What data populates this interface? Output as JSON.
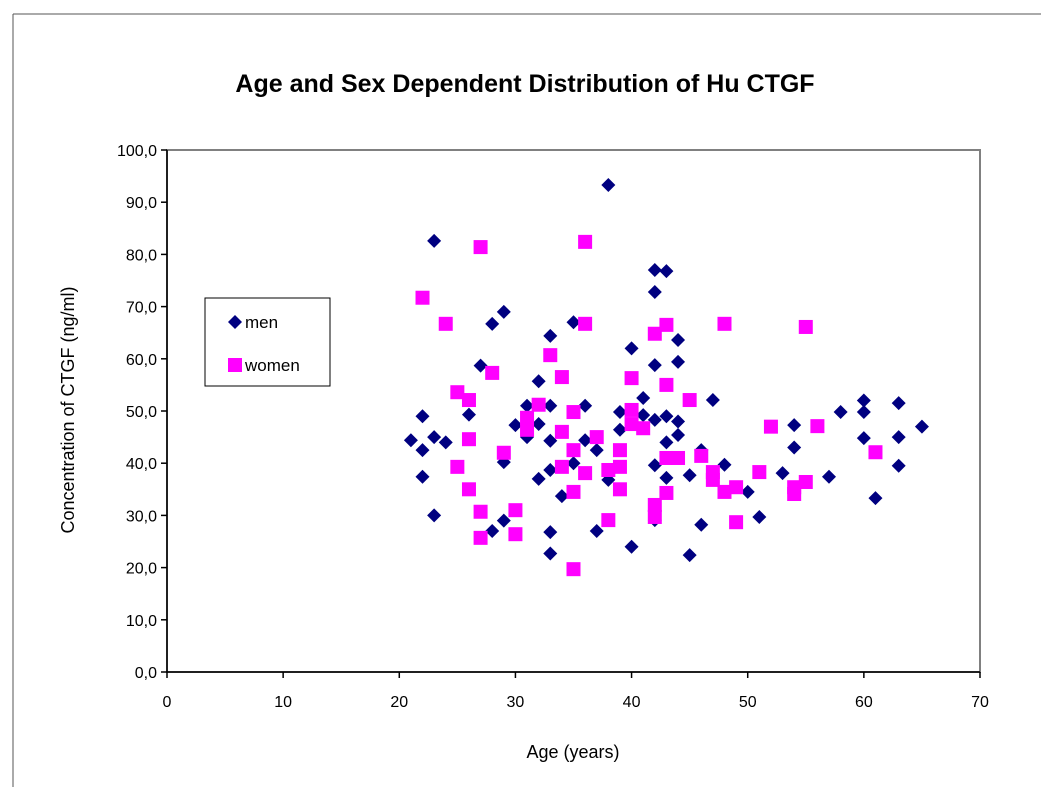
{
  "chart_data": {
    "type": "scatter",
    "title": "Age and Sex Dependent Distribution of Hu CTGF",
    "x_label": "Age (years)",
    "y_label": "Concentration of  CTGF (ng/ml)",
    "xlim": [
      0,
      70
    ],
    "xticks": [
      0,
      10,
      20,
      30,
      40,
      50,
      60,
      70
    ],
    "ylim": [
      0,
      100
    ],
    "yticks": [
      {
        "value": 0,
        "label": "0,0"
      },
      {
        "value": 10,
        "label": "10,0"
      },
      {
        "value": 20,
        "label": "20,0"
      },
      {
        "value": 30,
        "label": "30,0"
      },
      {
        "value": 40,
        "label": "40,0"
      },
      {
        "value": 50,
        "label": "50,0"
      },
      {
        "value": 60,
        "label": "60,0"
      },
      {
        "value": 70,
        "label": "70,0"
      },
      {
        "value": 80,
        "label": "80,0"
      },
      {
        "value": 90,
        "label": "90,0"
      },
      {
        "value": 100,
        "label": "100,0"
      }
    ],
    "grid": false,
    "legend": "left",
    "series": [
      {
        "name": "men",
        "color": "#000080",
        "marker": "diamond",
        "x": [
          21,
          22,
          22,
          22,
          23,
          23,
          23,
          24,
          26,
          27,
          28,
          28,
          29,
          29,
          29,
          30,
          31,
          31,
          32,
          32,
          32,
          33,
          33,
          33,
          33,
          33,
          33,
          34,
          35,
          35,
          36,
          36,
          37,
          37,
          38,
          38,
          39,
          39,
          40,
          40,
          41,
          41,
          42,
          42,
          42,
          42,
          42,
          42,
          43,
          43,
          43,
          43,
          44,
          44,
          44,
          44,
          45,
          45,
          46,
          46,
          47,
          48,
          50,
          51,
          53,
          54,
          54,
          57,
          58,
          60,
          60,
          60,
          61,
          63,
          63,
          63,
          65
        ],
        "values": [
          44.4,
          49,
          42.5,
          37.4,
          45,
          82.6,
          30,
          44,
          49.3,
          58.7,
          66.7,
          27,
          69,
          40.2,
          29,
          47.3,
          45,
          51,
          55.7,
          47.5,
          37,
          64.4,
          51,
          44.3,
          26.8,
          22.7,
          38.7,
          33.7,
          67,
          40,
          51,
          44.4,
          27,
          42.5,
          93.3,
          36.8,
          49.8,
          46.4,
          62,
          24,
          52.5,
          49.2,
          77,
          72.8,
          58.8,
          48.3,
          39.6,
          29.1,
          76.8,
          49,
          44,
          37.2,
          63.6,
          59.4,
          48,
          45.4,
          37.7,
          22.4,
          28.2,
          42.5,
          52.1,
          39.7,
          34.5,
          29.7,
          38.1,
          47.3,
          43,
          37.4,
          49.8,
          52,
          49.8,
          44.8,
          33.3,
          51.5,
          45,
          39.5,
          47
        ]
      },
      {
        "name": "women",
        "color": "#ff00ff",
        "marker": "square",
        "x": [
          22,
          24,
          25,
          25,
          26,
          26,
          26,
          27,
          27,
          27,
          28,
          29,
          30,
          30,
          31,
          31,
          32,
          33,
          34,
          34,
          34,
          35,
          35,
          35,
          35,
          36,
          36,
          36,
          37,
          38,
          38,
          39,
          39,
          39,
          40,
          40,
          40,
          41,
          42,
          42,
          42,
          43,
          43,
          43,
          43,
          44,
          45,
          46,
          47,
          47,
          48,
          48,
          49,
          49,
          51,
          52,
          54,
          54,
          55,
          55,
          56,
          61
        ],
        "values": [
          71.7,
          66.7,
          53.6,
          39.3,
          52.1,
          44.6,
          35,
          81.4,
          30.7,
          25.7,
          57.3,
          42,
          31,
          26.4,
          48.7,
          46.4,
          51.2,
          60.7,
          56.5,
          46,
          39.3,
          49.8,
          42.5,
          34.5,
          19.7,
          82.4,
          66.7,
          38.1,
          45,
          38.7,
          29.1,
          42.5,
          39.3,
          35,
          56.3,
          50.2,
          47.5,
          46.7,
          64.8,
          32,
          29.7,
          66.5,
          55,
          41,
          34.3,
          41,
          52.1,
          41.4,
          38.3,
          36.8,
          34.5,
          66.7,
          35.4,
          28.7,
          38.3,
          47,
          35.4,
          34.1,
          66.1,
          36.4,
          47.1,
          42.1
        ]
      }
    ]
  }
}
